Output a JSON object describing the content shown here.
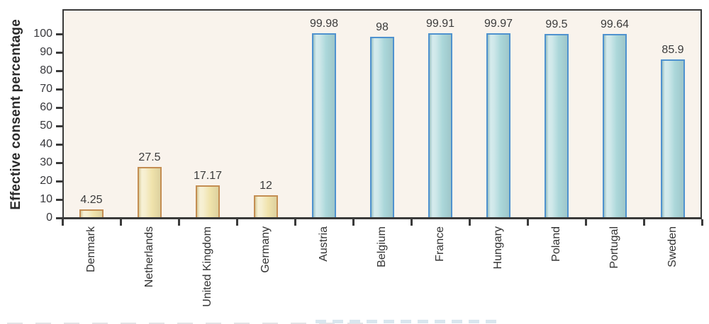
{
  "chart_data": {
    "type": "bar",
    "title": "",
    "xlabel": "",
    "ylabel": "Effective consent percentage",
    "ylim": [
      0,
      100
    ],
    "yticks": [
      0,
      10,
      20,
      30,
      40,
      50,
      60,
      70,
      80,
      90,
      100
    ],
    "grid": false,
    "legend_position": "none",
    "categories": [
      "Denmark",
      "Netherlands",
      "United Kingdom",
      "Germany",
      "Austria",
      "Belgium",
      "France",
      "Hungary",
      "Poland",
      "Portugal",
      "Sweden"
    ],
    "values": [
      4.25,
      27.5,
      17.17,
      12,
      99.98,
      98,
      99.91,
      99.97,
      99.5,
      99.64,
      85.9
    ],
    "value_labels": [
      "4.25",
      "27.5",
      "17.17",
      "12",
      "99.98",
      "98",
      "99.91",
      "99.97",
      "99.5",
      "99.64",
      "85.9"
    ],
    "bar_style_keys": [
      "tan",
      "tan",
      "tan",
      "tan",
      "blue",
      "blue",
      "blue",
      "blue",
      "blue",
      "blue",
      "blue"
    ],
    "palette": {
      "tan": {
        "fill": "#f0e3ac",
        "border": "#c48e53"
      },
      "blue": {
        "fill": "#abd7da",
        "border": "#4f92cf"
      }
    },
    "plot_background": "#f9f3ec",
    "frame_color": "#3a3a3a",
    "text_color": "#37373b"
  }
}
